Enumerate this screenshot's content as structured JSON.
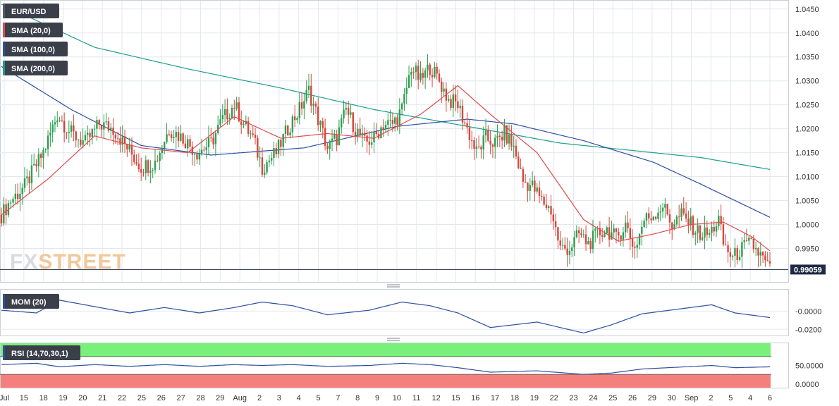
{
  "chart_data": [
    {
      "type": "candlestick",
      "legend": [
        {
          "label": "EUR/USD",
          "color": "#555a66"
        },
        {
          "label": "SMA (20,0)",
          "color": "#e04a4a"
        },
        {
          "label": "SMA (100,0)",
          "color": "#2c4fa0"
        },
        {
          "label": "SMA (200,0)",
          "color": "#1a9e8a"
        }
      ],
      "y_ticks": [
        "1.0450",
        "1.0400",
        "1.0350",
        "1.0300",
        "1.0250",
        "1.0200",
        "1.0150",
        "1.0100",
        "1.0050",
        "1.0000",
        "0.9950"
      ],
      "ylim": [
        0.988,
        1.046
      ],
      "last_price": "0.99059",
      "last_price_value": 0.99059,
      "x_labels": [
        "Jul",
        "15",
        "18",
        "19",
        "20",
        "21",
        "22",
        "25",
        "26",
        "27",
        "28",
        "29",
        "Aug",
        "2",
        "3",
        "4",
        "5",
        "7",
        "8",
        "9",
        "10",
        "11",
        "12",
        "15",
        "16",
        "17",
        "18",
        "19",
        "22",
        "23",
        "24",
        "25",
        "26",
        "29",
        "30",
        "Sep",
        "2",
        "5",
        "4",
        "6"
      ],
      "candle_colors": {
        "up": "#2e9e4f",
        "down": "#d9453b"
      },
      "close_anchors": [
        [
          0,
          1.002
        ],
        [
          4,
          1.005
        ],
        [
          10,
          1.008
        ],
        [
          18,
          1.015
        ],
        [
          24,
          1.023
        ],
        [
          30,
          1.019
        ],
        [
          36,
          1.017
        ],
        [
          42,
          1.021
        ],
        [
          48,
          1.02
        ],
        [
          54,
          1.016
        ],
        [
          60,
          1.012
        ],
        [
          66,
          1.013
        ],
        [
          72,
          1.02
        ],
        [
          78,
          1.018
        ],
        [
          84,
          1.015
        ],
        [
          90,
          1.017
        ],
        [
          95,
          1.022
        ],
        [
          100,
          1.025
        ],
        [
          104,
          1.021
        ],
        [
          108,
          1.018
        ],
        [
          112,
          1.012
        ],
        [
          118,
          1.015
        ],
        [
          124,
          1.021
        ],
        [
          128,
          1.024
        ],
        [
          132,
          1.028
        ],
        [
          136,
          1.022
        ],
        [
          140,
          1.016
        ],
        [
          144,
          1.018
        ],
        [
          148,
          1.024
        ],
        [
          152,
          1.02
        ],
        [
          156,
          1.017
        ],
        [
          160,
          1.018
        ],
        [
          164,
          1.021
        ],
        [
          168,
          1.021
        ],
        [
          172,
          1.024
        ],
        [
          176,
          1.033
        ],
        [
          180,
          1.03
        ],
        [
          184,
          1.033
        ],
        [
          188,
          1.03
        ],
        [
          192,
          1.026
        ],
        [
          196,
          1.025
        ],
        [
          200,
          1.02
        ],
        [
          204,
          1.015
        ],
        [
          208,
          1.018
        ],
        [
          212,
          1.017
        ],
        [
          216,
          1.019
        ],
        [
          220,
          1.016
        ],
        [
          224,
          1.009
        ],
        [
          228,
          1.008
        ],
        [
          232,
          1.005
        ],
        [
          236,
          1.003
        ],
        [
          240,
          0.995
        ],
        [
          244,
          0.995
        ],
        [
          248,
          0.998
        ],
        [
          252,
          0.996
        ],
        [
          256,
          0.998
        ],
        [
          260,
          0.999
        ],
        [
          264,
          0.997
        ],
        [
          268,
          1.0
        ],
        [
          272,
          0.995
        ],
        [
          276,
          1.001
        ],
        [
          280,
          1.002
        ],
        [
          284,
          1.004
        ],
        [
          288,
          1.0
        ],
        [
          292,
          1.002
        ],
        [
          296,
          1.0
        ],
        [
          300,
          0.998
        ],
        [
          304,
          0.998
        ],
        [
          308,
          1.001
        ],
        [
          310,
          0.996
        ],
        [
          314,
          0.993
        ],
        [
          318,
          0.995
        ],
        [
          322,
          0.996
        ],
        [
          326,
          0.9935
        ],
        [
          330,
          0.9905
        ]
      ],
      "sma20_anchors": [
        [
          0,
          1.002
        ],
        [
          20,
          1.0095
        ],
        [
          40,
          1.0185
        ],
        [
          60,
          1.016
        ],
        [
          80,
          1.015
        ],
        [
          100,
          1.0225
        ],
        [
          120,
          1.018
        ],
        [
          140,
          1.019
        ],
        [
          160,
          1.018
        ],
        [
          180,
          1.023
        ],
        [
          196,
          1.029
        ],
        [
          210,
          1.023
        ],
        [
          230,
          1.015
        ],
        [
          250,
          1.001
        ],
        [
          265,
          0.9965
        ],
        [
          280,
          0.998
        ],
        [
          296,
          1.0
        ],
        [
          310,
          1.0005
        ],
        [
          322,
          0.9975
        ],
        [
          330,
          0.9945
        ]
      ],
      "sma100_anchors": [
        [
          0,
          1.033
        ],
        [
          30,
          1.024
        ],
        [
          60,
          1.0165
        ],
        [
          90,
          1.0145
        ],
        [
          130,
          1.016
        ],
        [
          170,
          1.0205
        ],
        [
          200,
          1.022
        ],
        [
          220,
          1.021
        ],
        [
          250,
          1.0175
        ],
        [
          280,
          1.013
        ],
        [
          300,
          1.0085
        ],
        [
          315,
          1.005
        ],
        [
          330,
          1.0015
        ]
      ],
      "sma200_anchors": [
        [
          0,
          1.046
        ],
        [
          40,
          1.037
        ],
        [
          80,
          1.0325
        ],
        [
          120,
          1.0285
        ],
        [
          160,
          1.024
        ],
        [
          200,
          1.0205
        ],
        [
          240,
          1.017
        ],
        [
          270,
          1.0155
        ],
        [
          300,
          1.014
        ],
        [
          330,
          1.0115
        ]
      ]
    },
    {
      "type": "line",
      "legend": {
        "label": "MOM (20)",
        "color": "#2c4fa0"
      },
      "y_ticks": [
        "-0.0000",
        "-0.0200"
      ],
      "ylim": [
        -0.026,
        0.022
      ],
      "anchors": [
        [
          0,
          0.001
        ],
        [
          15,
          -0.002
        ],
        [
          25,
          0.012
        ],
        [
          40,
          0.005
        ],
        [
          55,
          -0.002
        ],
        [
          70,
          0.004
        ],
        [
          85,
          -0.002
        ],
        [
          100,
          0.004
        ],
        [
          112,
          0.01
        ],
        [
          125,
          0.006
        ],
        [
          140,
          -0.004
        ],
        [
          158,
          0.001
        ],
        [
          172,
          0.01
        ],
        [
          184,
          0.006
        ],
        [
          196,
          -0.002
        ],
        [
          210,
          -0.018
        ],
        [
          230,
          -0.012
        ],
        [
          250,
          -0.024
        ],
        [
          262,
          -0.015
        ],
        [
          275,
          -0.003
        ],
        [
          290,
          0.002
        ],
        [
          305,
          0.007
        ],
        [
          315,
          -0.002
        ],
        [
          330,
          -0.007
        ]
      ]
    },
    {
      "type": "line",
      "legend": {
        "label": "RSI (14,70,30,1)",
        "color": "#2c4fa0"
      },
      "y_ticks": [
        "50.0000",
        "0.0000"
      ],
      "ylim": [
        0,
        100
      ],
      "overbought": 70,
      "oversold": 30,
      "anchors": [
        [
          0,
          52
        ],
        [
          15,
          55
        ],
        [
          25,
          47
        ],
        [
          40,
          52
        ],
        [
          55,
          48
        ],
        [
          70,
          52
        ],
        [
          85,
          48
        ],
        [
          100,
          52
        ],
        [
          112,
          50
        ],
        [
          125,
          52
        ],
        [
          140,
          48
        ],
        [
          158,
          50
        ],
        [
          172,
          55
        ],
        [
          184,
          52
        ],
        [
          196,
          45
        ],
        [
          210,
          35
        ],
        [
          230,
          38
        ],
        [
          250,
          30
        ],
        [
          262,
          33
        ],
        [
          275,
          42
        ],
        [
          290,
          46
        ],
        [
          305,
          50
        ],
        [
          315,
          45
        ],
        [
          330,
          47
        ]
      ]
    }
  ]
}
